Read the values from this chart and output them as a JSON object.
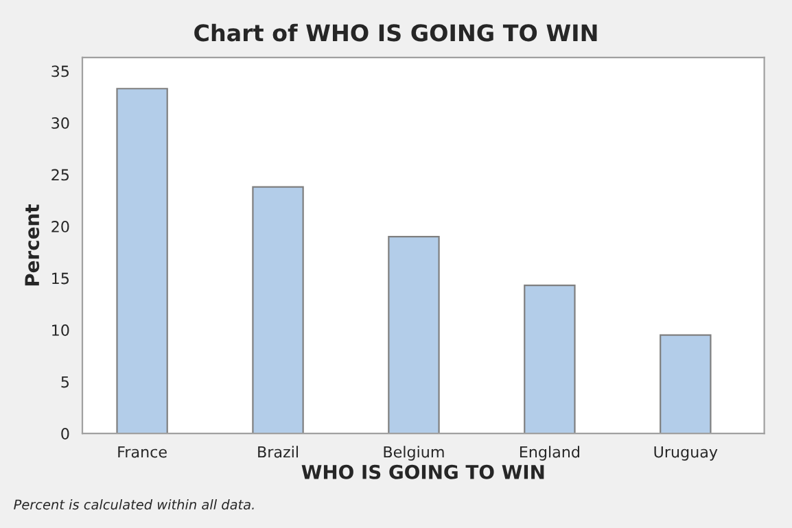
{
  "chart_data": {
    "type": "bar",
    "title": "Chart of WHO IS GOING TO WIN",
    "xlabel": "WHO IS GOING TO WIN",
    "ylabel": "Percent",
    "categories": [
      "France",
      "Brazil",
      "Belgium",
      "England",
      "Uruguay"
    ],
    "values": [
      33.3,
      23.8,
      19.0,
      14.3,
      9.5
    ],
    "color": "#b3cde9",
    "ylim": [
      0,
      36.3
    ],
    "yticks": [
      0,
      5,
      10,
      15,
      20,
      25,
      30,
      35
    ],
    "grid": false,
    "annotations": [
      "Percent is calculated within all data."
    ]
  }
}
